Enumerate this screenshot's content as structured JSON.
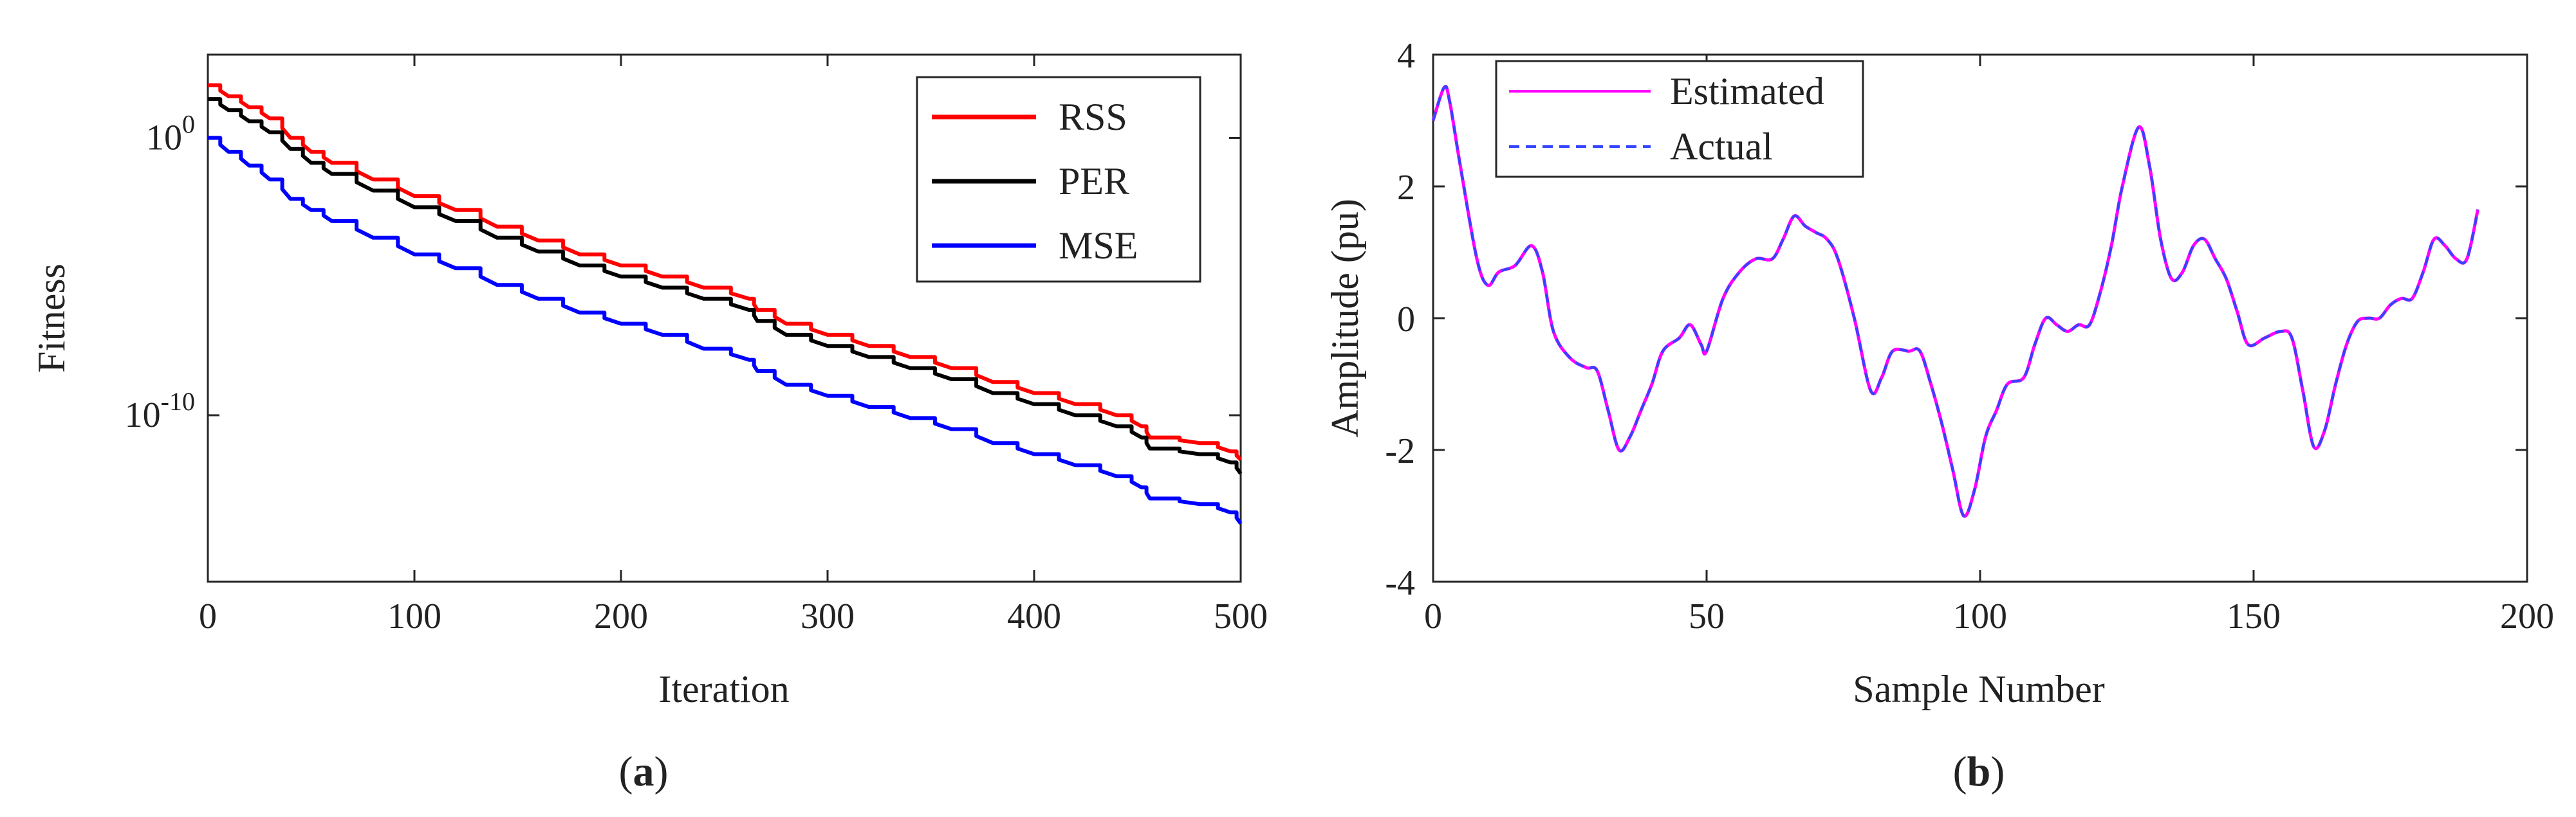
{
  "chart_data": [
    {
      "type": "line",
      "panel_label_open": "(",
      "panel_label_letter": "a",
      "panel_label_close": ")",
      "xlabel": "Iteration",
      "ylabel": "Fitness",
      "yscale": "log",
      "xlim": [
        0,
        500
      ],
      "ylim_exp": [
        -16,
        3
      ],
      "xticks": [
        0,
        100,
        200,
        300,
        400,
        500
      ],
      "yticks": [
        {
          "exp": 0,
          "base": "10",
          "sup": "0"
        },
        {
          "exp": -10,
          "base": "10",
          "sup": "-10"
        }
      ],
      "legend_position": "top-right",
      "series": [
        {
          "name": "RSS",
          "color": "#ff0000",
          "x": [
            0,
            10,
            20,
            30,
            40,
            50,
            60,
            80,
            100,
            120,
            140,
            160,
            180,
            200,
            220,
            240,
            262,
            266,
            280,
            300,
            320,
            340,
            360,
            380,
            400,
            420,
            440,
            452,
            456,
            480,
            495,
            500
          ],
          "log10": [
            1.9,
            1.5,
            1.1,
            0.7,
            0.0,
            -0.5,
            -0.9,
            -1.5,
            -2.1,
            -2.6,
            -3.2,
            -3.7,
            -4.2,
            -4.6,
            -5.0,
            -5.4,
            -5.8,
            -6.2,
            -6.7,
            -7.1,
            -7.5,
            -7.9,
            -8.3,
            -8.8,
            -9.2,
            -9.6,
            -10.0,
            -10.4,
            -10.8,
            -11.0,
            -11.3,
            -11.6
          ]
        },
        {
          "name": "PER",
          "color": "#000000",
          "x": [
            0,
            10,
            20,
            30,
            40,
            50,
            60,
            80,
            100,
            120,
            140,
            160,
            180,
            200,
            220,
            240,
            262,
            266,
            280,
            300,
            320,
            340,
            360,
            380,
            400,
            420,
            440,
            452,
            456,
            480,
            495,
            500
          ],
          "log10": [
            1.4,
            1.0,
            0.6,
            0.2,
            -0.4,
            -0.9,
            -1.3,
            -1.9,
            -2.5,
            -3.0,
            -3.6,
            -4.1,
            -4.6,
            -5.0,
            -5.4,
            -5.8,
            -6.2,
            -6.6,
            -7.1,
            -7.5,
            -7.9,
            -8.3,
            -8.7,
            -9.2,
            -9.6,
            -10.0,
            -10.4,
            -10.8,
            -11.2,
            -11.4,
            -11.7,
            -12.1
          ]
        },
        {
          "name": "MSE",
          "color": "#0000ff",
          "x": [
            0,
            10,
            20,
            30,
            40,
            50,
            60,
            80,
            100,
            120,
            140,
            160,
            180,
            200,
            220,
            240,
            262,
            266,
            280,
            300,
            320,
            340,
            360,
            380,
            400,
            420,
            440,
            452,
            456,
            480,
            495,
            500
          ],
          "log10": [
            0.0,
            -0.5,
            -1.0,
            -1.5,
            -2.2,
            -2.6,
            -3.0,
            -3.6,
            -4.2,
            -4.7,
            -5.3,
            -5.8,
            -6.3,
            -6.7,
            -7.1,
            -7.6,
            -8.0,
            -8.4,
            -8.9,
            -9.3,
            -9.7,
            -10.1,
            -10.5,
            -11.0,
            -11.4,
            -11.8,
            -12.2,
            -12.6,
            -13.0,
            -13.2,
            -13.5,
            -13.9
          ]
        }
      ]
    },
    {
      "type": "line",
      "panel_label_open": "(",
      "panel_label_letter": "b",
      "panel_label_close": ")",
      "xlabel": "Sample Number",
      "ylabel": "Amplitude (pu)",
      "xlim": [
        0,
        200
      ],
      "ylim": [
        -4,
        4
      ],
      "xticks": [
        0,
        50,
        100,
        150,
        200
      ],
      "yticks": [
        -4,
        -2,
        0,
        2,
        4
      ],
      "legend_position": "top-left",
      "series": [
        {
          "name": "Estimated",
          "color": "#ff00ff",
          "style": "solid",
          "x": [
            0,
            2,
            3,
            5,
            8,
            10,
            12,
            15,
            18,
            20,
            22,
            25,
            28,
            30,
            32,
            34,
            36,
            38,
            40,
            42,
            45,
            47,
            49,
            50,
            53,
            56,
            59,
            62,
            64,
            66,
            68,
            70,
            72,
            74,
            77,
            80,
            82,
            84,
            87,
            89,
            91,
            93,
            95,
            97,
            99,
            101,
            103,
            105,
            108,
            110,
            112,
            114,
            116,
            118,
            120,
            122,
            124,
            126,
            129,
            131,
            133,
            135,
            137,
            139,
            141,
            143,
            145,
            147,
            149,
            152,
            155,
            157,
            159,
            161,
            163,
            165,
            167,
            169,
            171,
            173,
            175,
            177,
            179,
            181,
            183,
            185,
            187,
            189,
            191
          ],
          "y": [
            3.0,
            3.5,
            3.3,
            2.3,
            0.9,
            0.5,
            0.7,
            0.8,
            1.1,
            0.7,
            -0.2,
            -0.6,
            -0.75,
            -0.8,
            -1.4,
            -2.0,
            -1.8,
            -1.4,
            -1.0,
            -0.5,
            -0.3,
            -0.1,
            -0.4,
            -0.5,
            0.3,
            0.7,
            0.9,
            0.9,
            1.2,
            1.55,
            1.4,
            1.3,
            1.2,
            0.9,
            0.0,
            -1.1,
            -0.9,
            -0.5,
            -0.5,
            -0.5,
            -1.0,
            -1.6,
            -2.3,
            -3.0,
            -2.6,
            -1.8,
            -1.4,
            -1.0,
            -0.9,
            -0.4,
            0.0,
            -0.1,
            -0.2,
            -0.1,
            -0.1,
            0.4,
            1.1,
            2.0,
            2.9,
            2.3,
            1.2,
            0.6,
            0.7,
            1.1,
            1.2,
            0.9,
            0.6,
            0.1,
            -0.4,
            -0.3,
            -0.2,
            -0.3,
            -1.1,
            -1.95,
            -1.7,
            -1.0,
            -0.4,
            -0.05,
            0.0,
            0.0,
            0.2,
            0.3,
            0.3,
            0.7,
            1.2,
            1.1,
            0.9,
            0.9,
            1.65
          ]
        },
        {
          "name": "Actual",
          "color": "#3344ff",
          "style": "dashed"
        }
      ]
    }
  ]
}
